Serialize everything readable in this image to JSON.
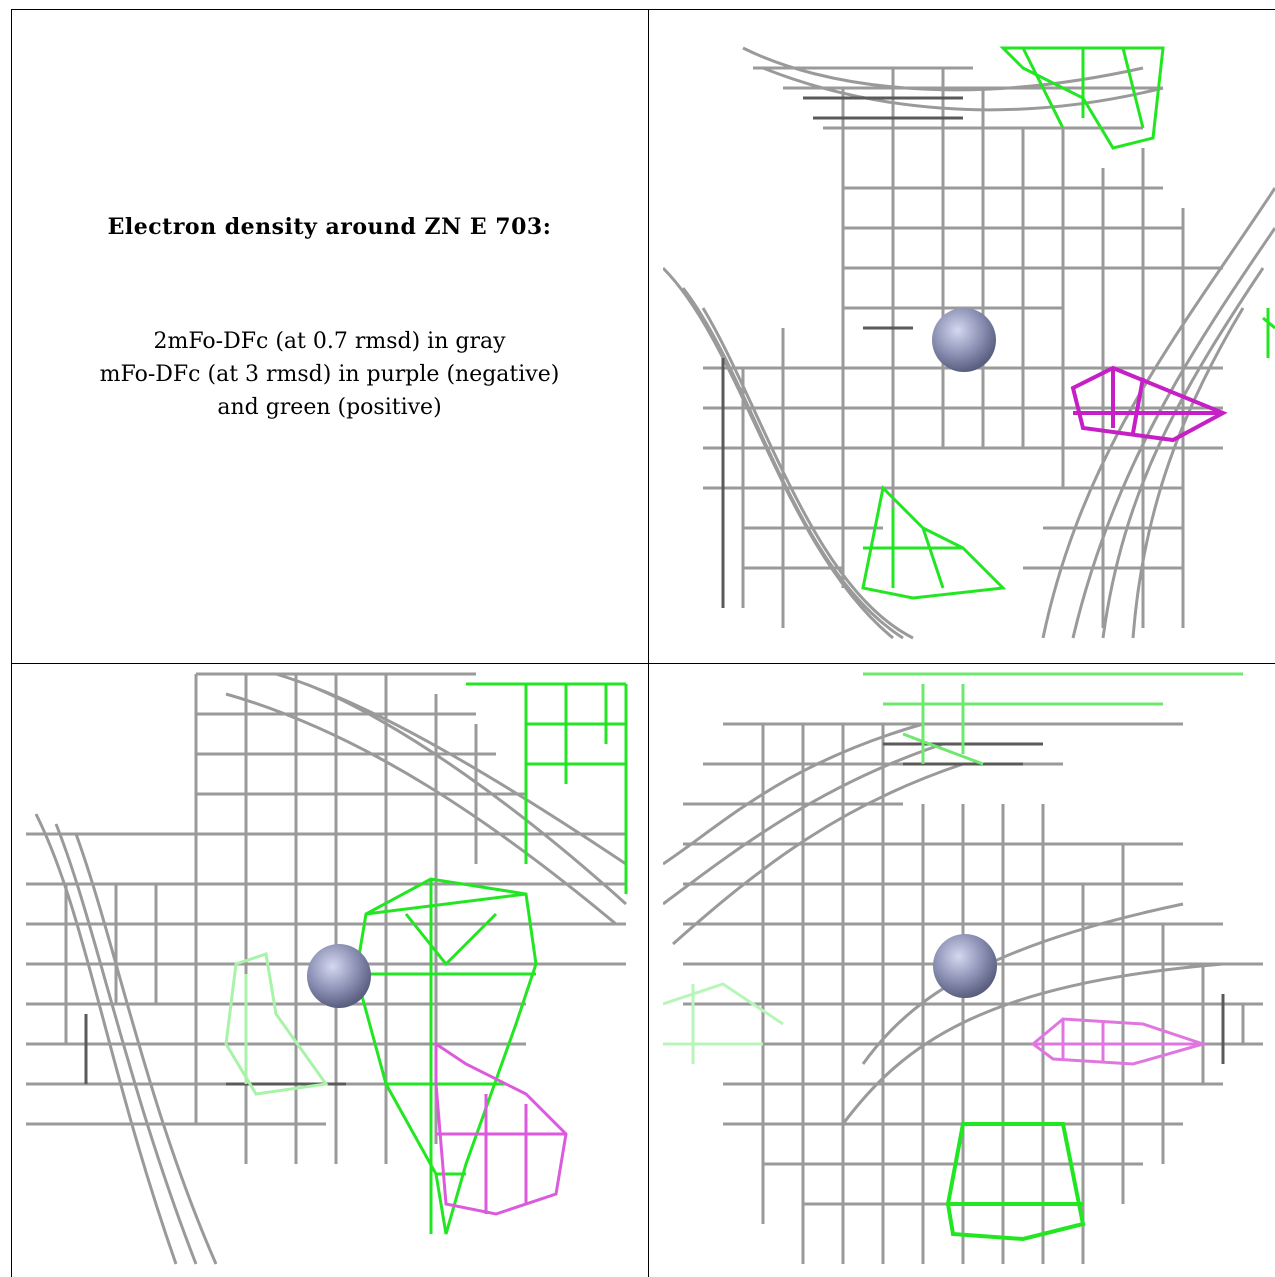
{
  "caption": {
    "title": "Electron density around ZN E 703:",
    "line1": "2mFo-DFc (at 0.7 rmsd) in gray",
    "line2": "mFo-DFc (at 3 rmsd) in purple (negative)",
    "line3": "and green (positive)"
  },
  "colors": {
    "map_2fofc": "#9a9a9a",
    "map_2fofc_dark": "#5a5a5a",
    "fofc_positive": "#22e622",
    "fofc_negative": "#c51fc5",
    "zinc_atom": "#8a8fb3"
  },
  "panels": [
    {
      "name": "view-1",
      "atom": "ZN E 703"
    },
    {
      "name": "view-2",
      "atom": "ZN E 703"
    },
    {
      "name": "view-3",
      "atom": "ZN E 703"
    }
  ]
}
